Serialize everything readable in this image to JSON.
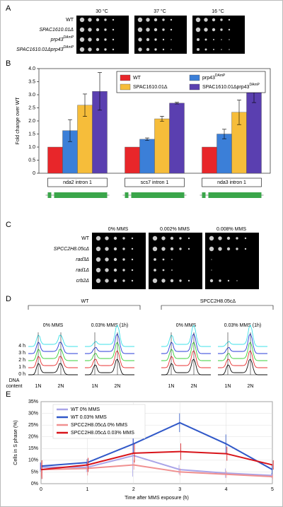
{
  "panelA": {
    "letter": "A",
    "conditions": [
      "30 °C",
      "37 °C",
      "16 °C"
    ],
    "strains": [
      {
        "name": "WT"
      },
      {
        "name": "SPAC1610.01Δ"
      },
      {
        "name": "prp43",
        "sup": "DAmP"
      },
      {
        "name": "SPAC1610.01Δprp43",
        "sup": "DAmP"
      }
    ]
  },
  "panelC": {
    "letter": "C",
    "conditions": [
      "0% MMS",
      "0.002% MMS",
      "0.008% MMS"
    ],
    "strains": [
      "WT",
      "SPCC2H8.05cΔ",
      "rad3Δ",
      "rad1Δ",
      "crb2Δ"
    ]
  },
  "panelD": {
    "letter": "D",
    "groups": [
      "WT",
      "SPCC2H8.05cΔ"
    ],
    "conditions": [
      "0% MMS",
      "0.03% MMS (1h)"
    ],
    "times": [
      "4 h",
      "3 h",
      "2 h",
      "1 h",
      "0 h"
    ],
    "axis_label": [
      "DNA",
      "content"
    ],
    "peaks": [
      "1N",
      "2N"
    ]
  },
  "chart_data": [
    {
      "type": "bar",
      "letter": "B",
      "ylabel": "Fold change over WT",
      "categories": [
        "nda2 intron 1",
        "scs7 intron 1",
        "nda3 intron 1"
      ],
      "ylim": [
        0,
        4
      ],
      "yticks": [
        0,
        0.5,
        {
          "value": 1,
          "label": "1.0"
        },
        1.5,
        {
          "value": 2,
          "label": "2.0"
        },
        2.5,
        {
          "value": 3,
          "label": "3.0"
        },
        3.5,
        {
          "value": 4,
          "label": "4.0"
        }
      ],
      "series": [
        {
          "name": "WT",
          "color": "#e8262a",
          "values": [
            1,
            1,
            1
          ]
        },
        {
          "name": "prp43",
          "name_sup": "DAmP",
          "color": "#3b7fd8",
          "values": [
            1.63,
            1.3,
            1.5
          ],
          "errors": [
            0.42,
            0.05,
            0.18
          ]
        },
        {
          "name": "SPAC1610.01Δ",
          "color": "#f6bd3a",
          "values": [
            2.6,
            2.08,
            2.33
          ],
          "errors": [
            0.43,
            0.1,
            0.47
          ]
        },
        {
          "name": "SPAC1610.01Δprp43",
          "name_sup": "DAmP",
          "color": "#5a3fb0",
          "values": [
            3.13,
            2.68,
            3.15
          ],
          "errors": [
            0.72,
            0.03,
            0.45
          ]
        }
      ]
    },
    {
      "type": "line",
      "letter": "E",
      "xlabel": "Time after MMS exposure (h)",
      "ylabel": "Cells in S phase (%)",
      "x": [
        0,
        1,
        2,
        3,
        4,
        5
      ],
      "xlim": [
        0,
        5
      ],
      "xticks": [
        0,
        1,
        2,
        3,
        4,
        5
      ],
      "ylim": [
        0,
        35
      ],
      "yticks": [
        {
          "value": 0,
          "label": "0%"
        },
        {
          "value": 5,
          "label": "5%"
        },
        {
          "value": 10,
          "label": "10%"
        },
        {
          "value": 15,
          "label": "15%"
        },
        {
          "value": 20,
          "label": "20%"
        },
        {
          "value": 25,
          "label": "25%"
        },
        {
          "value": 30,
          "label": "30%"
        },
        {
          "value": 35,
          "label": "35%"
        }
      ],
      "series": [
        {
          "name": "WT 0% MMS",
          "color": "#a9a4e8",
          "values": [
            7,
            7,
            12,
            6,
            4.5,
            3.5
          ],
          "errors": [
            2,
            2,
            9,
            2,
            2,
            1
          ]
        },
        {
          "name": "WT 0.03% MMS",
          "color": "#3058c8",
          "values": [
            7.5,
            9,
            17,
            26,
            17,
            6
          ],
          "errors": [
            1.5,
            1.5,
            4,
            4,
            4,
            2
          ]
        },
        {
          "name": "SPCC2H8.05cΔ 0% MMS",
          "color": "#f09090",
          "values": [
            6,
            6.5,
            8,
            5,
            4,
            3
          ],
          "errors": [
            3,
            3,
            2,
            1.5,
            1.5,
            1
          ]
        },
        {
          "name": "SPCC2H8.05cΔ 0.03% MMS",
          "color": "#d8141a",
          "values": [
            6,
            8,
            13,
            13.7,
            12.8,
            8
          ],
          "errors": [
            4,
            3,
            4,
            3.5,
            3,
            2
          ]
        }
      ]
    }
  ]
}
